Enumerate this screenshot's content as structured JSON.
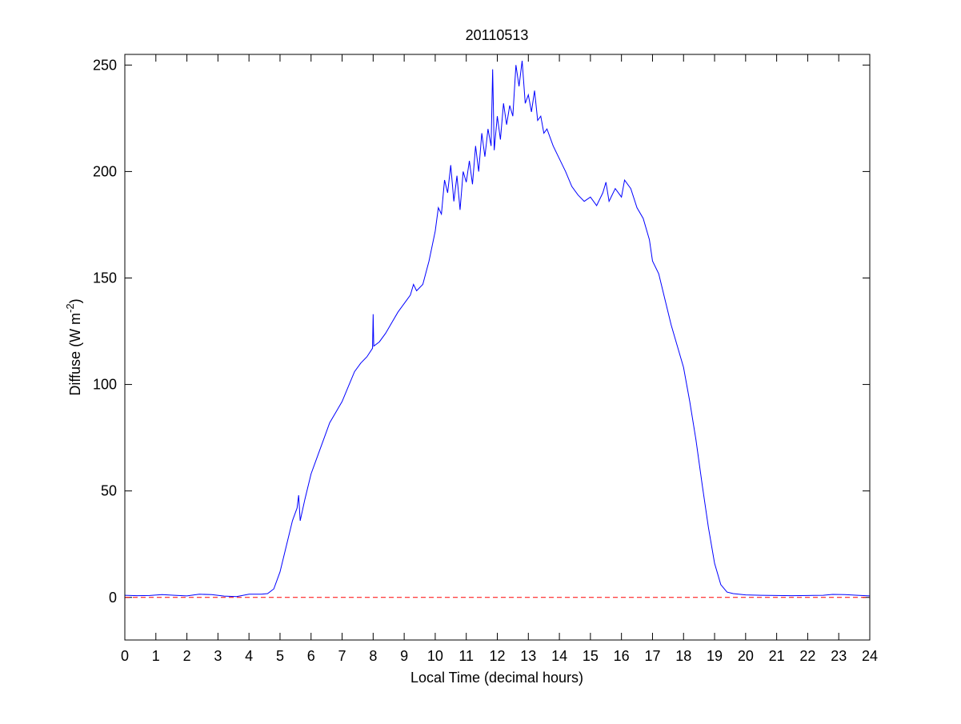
{
  "chart_data": {
    "type": "line",
    "title": "20110513",
    "xlabel": "Local Time (decimal hours)",
    "ylabel": [
      "Diffuse (W m",
      "-2",
      ")"
    ],
    "color": "#0000ff",
    "reference_line": {
      "value": 0,
      "color": "#ff0000"
    },
    "xlim": [
      0,
      24
    ],
    "xticks": [
      0,
      1,
      2,
      3,
      4,
      5,
      6,
      7,
      8,
      9,
      10,
      11,
      12,
      13,
      14,
      15,
      16,
      17,
      18,
      19,
      20,
      21,
      22,
      23,
      24
    ],
    "ylim": [
      -20,
      255
    ],
    "yticks": [
      0,
      50,
      100,
      150,
      200,
      250
    ],
    "x": [
      0,
      0.4,
      0.8,
      1.2,
      1.6,
      2.0,
      2.4,
      2.8,
      3.2,
      3.6,
      4.0,
      4.4,
      4.6,
      4.8,
      5.0,
      5.2,
      5.4,
      5.55,
      5.6,
      5.65,
      5.8,
      6.0,
      6.2,
      6.4,
      6.6,
      6.8,
      7.0,
      7.2,
      7.4,
      7.6,
      7.8,
      7.98,
      8.0,
      8.02,
      8.2,
      8.4,
      8.6,
      8.8,
      9.0,
      9.2,
      9.3,
      9.4,
      9.6,
      9.8,
      10.0,
      10.1,
      10.2,
      10.3,
      10.4,
      10.5,
      10.6,
      10.7,
      10.8,
      10.9,
      11.0,
      11.1,
      11.2,
      11.3,
      11.4,
      11.5,
      11.6,
      11.7,
      11.8,
      11.85,
      11.9,
      12.0,
      12.1,
      12.2,
      12.3,
      12.4,
      12.5,
      12.6,
      12.7,
      12.8,
      12.9,
      13.0,
      13.1,
      13.2,
      13.3,
      13.4,
      13.5,
      13.6,
      13.8,
      14.0,
      14.2,
      14.4,
      14.6,
      14.8,
      15.0,
      15.2,
      15.4,
      15.5,
      15.6,
      15.8,
      16.0,
      16.1,
      16.3,
      16.5,
      16.7,
      16.9,
      17.0,
      17.2,
      17.4,
      17.6,
      17.8,
      18.0,
      18.2,
      18.4,
      18.6,
      18.8,
      19.0,
      19.2,
      19.4,
      19.6,
      20.0,
      20.5,
      21.0,
      21.5,
      22.0,
      22.5,
      22.8,
      23.2,
      23.6,
      24.0
    ],
    "values": [
      1.0,
      0.8,
      0.9,
      1.3,
      1.0,
      0.7,
      1.5,
      1.3,
      0.6,
      0.4,
      1.5,
      1.5,
      1.8,
      4,
      12,
      24,
      36,
      42,
      48,
      36,
      46,
      58,
      66,
      74,
      82,
      87,
      92,
      99,
      106,
      110,
      113,
      117,
      133,
      118,
      120,
      124,
      129,
      134,
      138,
      142,
      147,
      144,
      147,
      158,
      172,
      183,
      180,
      196,
      190,
      203,
      186,
      198,
      182,
      200,
      195,
      205,
      194,
      212,
      200,
      218,
      207,
      220,
      212,
      248,
      210,
      226,
      215,
      232,
      222,
      231,
      226,
      250,
      240,
      252,
      232,
      236,
      228,
      238,
      224,
      226,
      218,
      220,
      212,
      206,
      200,
      193,
      189,
      186,
      188,
      184,
      190,
      195,
      186,
      192,
      188,
      196,
      192,
      183,
      178,
      168,
      158,
      152,
      140,
      128,
      118,
      108,
      92,
      74,
      53,
      33,
      16,
      6,
      2.5,
      1.8,
      1.2,
      1.0,
      0.9,
      0.8,
      0.9,
      1.0,
      1.4,
      1.3,
      1.0,
      0.7
    ]
  }
}
